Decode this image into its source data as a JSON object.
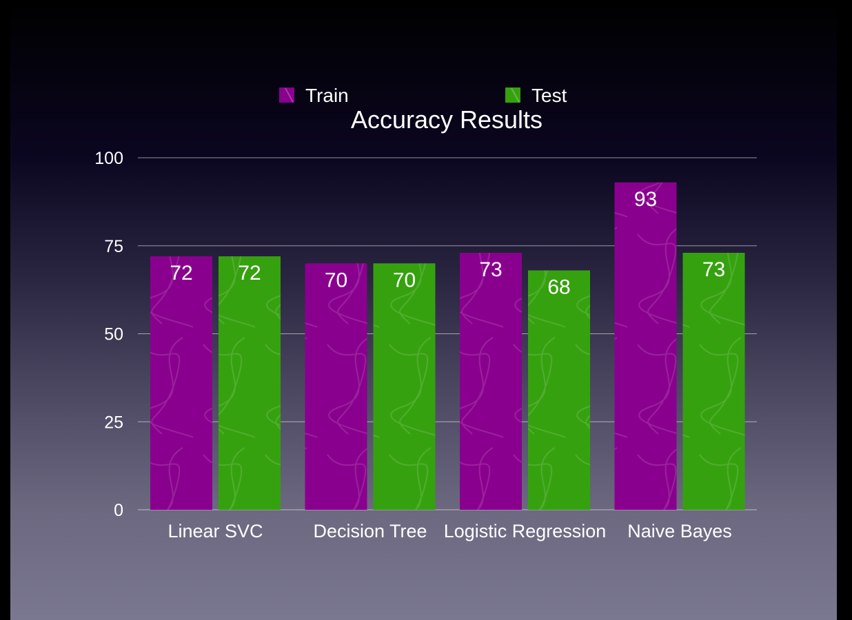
{
  "chart_data": {
    "type": "bar",
    "title": "Accuracy Results",
    "categories": [
      "Linear SVC",
      "Decision Tree",
      "Logistic Regression",
      "Naive Bayes"
    ],
    "series": [
      {
        "name": "Train",
        "values": [
          72,
          70,
          73,
          93
        ],
        "color": "#8a008e"
      },
      {
        "name": "Test",
        "values": [
          72,
          70,
          68,
          73
        ],
        "color": "#36a10f"
      }
    ],
    "ylim": [
      0,
      100
    ],
    "yticks": [
      0,
      25,
      50,
      75,
      100
    ],
    "grid": true,
    "legend_position": "top-center",
    "data_labels": true
  }
}
